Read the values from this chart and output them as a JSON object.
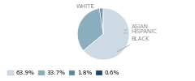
{
  "labels": [
    "WHITE",
    "BLACK",
    "HISPANIC",
    "ASIAN"
  ],
  "values": [
    63.9,
    33.7,
    1.8,
    0.6
  ],
  "colors": [
    "#cdd9e3",
    "#8aaebe",
    "#5a86a0",
    "#1e4560"
  ],
  "legend_labels": [
    "63.9%",
    "33.7%",
    "1.8%",
    "0.6%"
  ],
  "legend_colors": [
    "#cdd9e3",
    "#8aaebe",
    "#5a86a0",
    "#1e4560"
  ],
  "label_fontsize": 5.0,
  "legend_fontsize": 5.2,
  "label_color": "#888888"
}
